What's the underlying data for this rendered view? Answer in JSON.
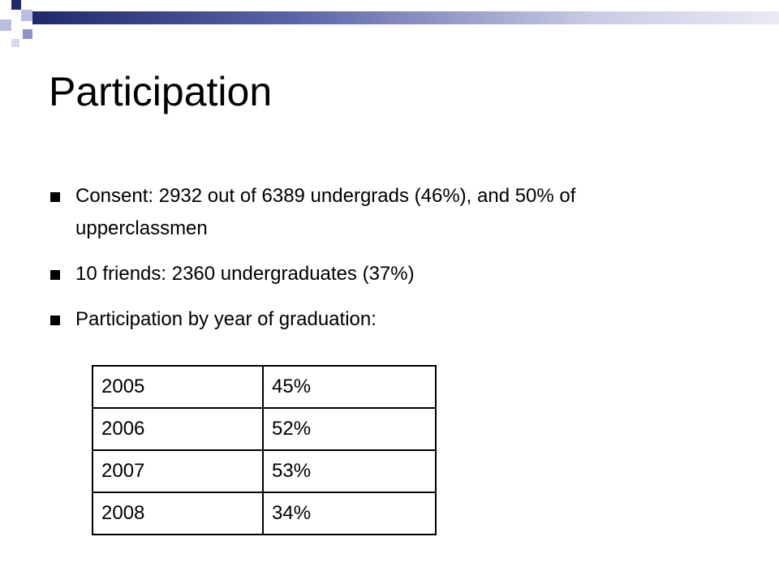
{
  "title": "Participation",
  "bullets": [
    "Consent: 2932 out of 6389 undergrads (46%), and 50% of upperclassmen",
    "10 friends: 2360 undergraduates (37%)",
    "Participation by year of graduation:"
  ],
  "table": {
    "rows": [
      [
        "2005",
        "45%"
      ],
      [
        "2006",
        "52%"
      ],
      [
        "2007",
        "53%"
      ],
      [
        "2008",
        "34%"
      ]
    ]
  }
}
